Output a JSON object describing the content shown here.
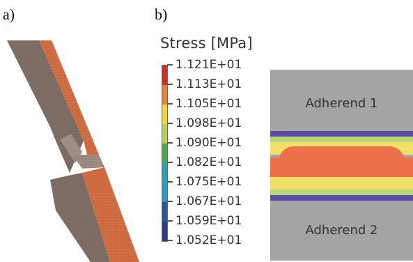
{
  "panel_labels": {
    "a": "a)",
    "b": "b)"
  },
  "legend": {
    "title": "Stress [MPa]",
    "ticks": [
      "1.121E+01",
      "1.113E+01",
      "1.105E+01",
      "1.098E+01",
      "1.090E+01",
      "1.082E+01",
      "1.075E+01",
      "1.067E+01",
      "1.059E+01",
      "1.052E+01"
    ],
    "colors": [
      "#e02a1e",
      "#f07f2b",
      "#f5d722",
      "#b6d24a",
      "#3fae4b",
      "#1aa9b8",
      "#1f9bd8",
      "#2157a8",
      "#2a3f8f"
    ]
  },
  "joint": {
    "adherend_1": "Adherend 1",
    "adherend_2": "Adherend 2",
    "colors": {
      "adherend": "#a4a4a4",
      "purple": "#5a4aa0",
      "green": "#76c15a",
      "yellow": "#f2e06a",
      "orange": "#ee7048"
    }
  },
  "mesh_colors": {
    "dark": "#7f6e66",
    "orange": "#d36f44",
    "light": "#a08e86"
  }
}
